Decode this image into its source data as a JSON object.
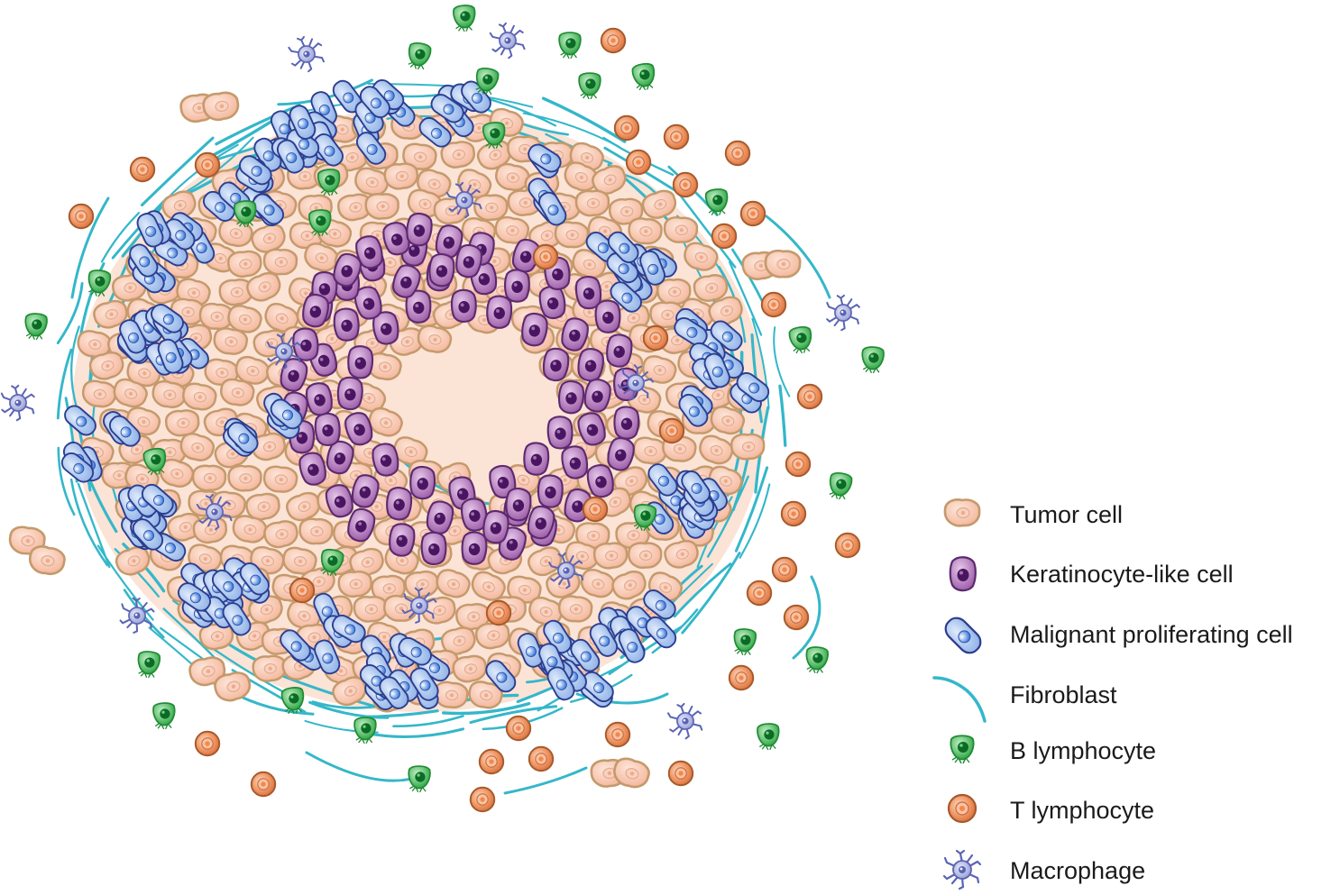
{
  "legend": {
    "items": [
      {
        "key": "tumor",
        "label": "Tumor cell"
      },
      {
        "key": "keratinocyte",
        "label": "Keratinocyte-like cell"
      },
      {
        "key": "malignant",
        "label": "Malignant proliferating cell"
      },
      {
        "key": "fibroblast",
        "label": "Fibroblast"
      },
      {
        "key": "b-lymphocyte",
        "label": "B lymphocyte"
      },
      {
        "key": "t-lymphocyte",
        "label": "T lymphocyte"
      },
      {
        "key": "macrophage",
        "label": "Macrophage"
      }
    ]
  },
  "colors": {
    "tumor_fill": "#f8c9b3",
    "tumor_stroke": "#c49a6c",
    "keratinocyte_fill": "#b07bb6",
    "keratinocyte_stroke": "#5b2a6e",
    "keratinocyte_nucleus": "#4a1560",
    "malignant_fill": "#a9c6ee",
    "malignant_stroke": "#2b3d8f",
    "malignant_nucleus": "#2f6fd6",
    "fibroblast": "#34b7c9",
    "b_fill": "#33b54a",
    "b_nucleus": "#0b6b26",
    "t_fill": "#e8834f",
    "t_stroke": "#a65a2c",
    "macrophage": "#6f79c0"
  }
}
